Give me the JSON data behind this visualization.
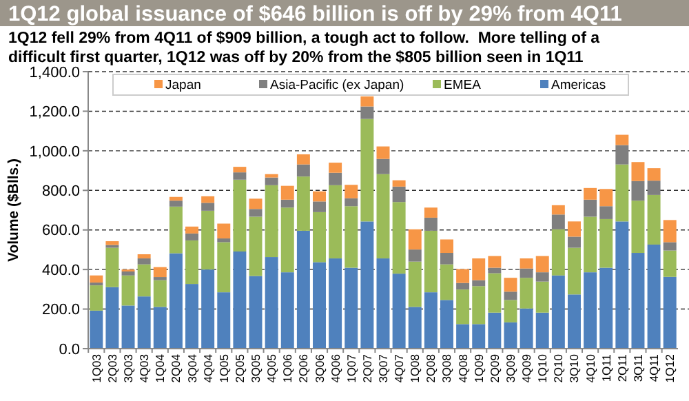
{
  "chart_data": {
    "type": "bar",
    "stacked": true,
    "title": "1Q12 global issuance of $646 billion is off by 29% from 4Q11",
    "subtitle": "1Q12 fell 29% from 4Q11 of $909 billion, a tough act to follow.  More telling of a difficult first quarter, 1Q12 was off by 20% from the $805 billion seen in 1Q11",
    "ylabel": "Volume ($Blls.)",
    "categories": [
      "1Q03",
      "2Q03",
      "3Q03",
      "4Q03",
      "1Q04",
      "2Q04",
      "3Q04",
      "4Q04",
      "1Q05",
      "2Q05",
      "3Q05",
      "4Q05",
      "1Q06",
      "2Q06",
      "3Q06",
      "4Q06",
      "1Q07",
      "2Q07",
      "3Q07",
      "4Q07",
      "1Q08",
      "2Q08",
      "3Q08",
      "4Q08",
      "1Q09",
      "2Q09",
      "3Q09",
      "4Q09",
      "1Q10",
      "2Q10",
      "3Q10",
      "4Q10",
      "1Q11",
      "2Q11",
      "3Q11",
      "4Q11",
      "1Q12"
    ],
    "series": [
      {
        "name": "Americas",
        "color": "#4f81bd",
        "values": [
          192,
          311,
          218,
          264,
          211,
          482,
          327,
          400,
          285,
          491,
          367,
          463,
          386,
          596,
          437,
          456,
          409,
          643,
          456,
          379,
          211,
          285,
          246,
          124,
          124,
          182,
          133,
          203,
          182,
          370,
          274,
          386,
          409,
          643,
          484,
          526,
          363
        ]
      },
      {
        "name": "EMEA",
        "color": "#9bbb59",
        "values": [
          128,
          199,
          152,
          162,
          135,
          236,
          220,
          297,
          253,
          363,
          300,
          363,
          327,
          274,
          253,
          370,
          311,
          518,
          426,
          362,
          229,
          311,
          180,
          175,
          192,
          199,
          113,
          155,
          157,
          233,
          236,
          281,
          246,
          288,
          264,
          251,
          133
        ]
      },
      {
        "name": "Asia-Pacific (ex Japan)",
        "color": "#7f7f7f",
        "values": [
          14,
          14,
          20,
          30,
          16,
          30,
          35,
          40,
          19,
          37,
          39,
          39,
          40,
          61,
          54,
          63,
          40,
          63,
          77,
          78,
          61,
          66,
          58,
          33,
          30,
          28,
          42,
          47,
          47,
          75,
          56,
          86,
          65,
          98,
          99,
          72,
          42
        ]
      },
      {
        "name": "Japan",
        "color": "#f79646",
        "values": [
          36,
          19,
          10,
          21,
          50,
          19,
          35,
          33,
          75,
          28,
          52,
          17,
          70,
          51,
          51,
          51,
          68,
          51,
          63,
          32,
          102,
          51,
          68,
          70,
          110,
          59,
          70,
          51,
          82,
          47,
          77,
          59,
          87,
          52,
          96,
          63,
          112
        ]
      }
    ],
    "ylim": [
      0,
      1400
    ],
    "yticks": [
      {
        "value": 0,
        "label": "0.0"
      },
      {
        "value": 200,
        "label": "200.0"
      },
      {
        "value": 400,
        "label": "400.0"
      },
      {
        "value": 600,
        "label": "600.0"
      },
      {
        "value": 800,
        "label": "800.0"
      },
      {
        "value": 1000,
        "label": "1,000.0"
      },
      {
        "value": 1200,
        "label": "1,200.0"
      },
      {
        "value": 1400,
        "label": "1,400.0"
      }
    ],
    "grid": "y",
    "legend": "top"
  }
}
